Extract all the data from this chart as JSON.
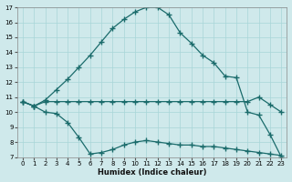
{
  "xlabel": "Humidex (Indice chaleur)",
  "bg_color": "#cfe9eb",
  "grid_color": "#a8d5d8",
  "line_color": "#1a6b6b",
  "xlim": [
    -0.5,
    23.5
  ],
  "ylim": [
    7,
    17
  ],
  "xticks": [
    0,
    1,
    2,
    3,
    4,
    5,
    6,
    7,
    8,
    9,
    10,
    11,
    12,
    13,
    14,
    15,
    16,
    17,
    18,
    19,
    20,
    21,
    22,
    23
  ],
  "yticks": [
    7,
    8,
    9,
    10,
    11,
    12,
    13,
    14,
    15,
    16,
    17
  ],
  "curve_x": [
    0,
    1,
    2,
    3,
    4,
    5,
    6,
    7,
    8,
    9,
    10,
    11,
    12,
    13,
    14,
    15,
    16,
    17,
    18,
    19,
    20,
    21,
    22,
    23
  ],
  "curve_y": [
    10.7,
    10.4,
    10.8,
    11.5,
    12.2,
    13.0,
    13.8,
    14.7,
    15.6,
    16.2,
    16.7,
    17.0,
    17.0,
    16.5,
    15.3,
    14.6,
    13.8,
    13.3,
    12.4,
    12.3,
    10.0,
    9.8,
    8.5,
    7.0
  ],
  "flat_x": [
    0,
    1,
    2,
    3,
    4,
    5,
    6,
    7,
    8,
    9,
    10,
    11,
    12,
    13,
    14,
    15,
    16,
    17,
    18,
    19,
    20,
    21,
    22,
    23
  ],
  "flat_y": [
    10.7,
    10.4,
    10.7,
    10.7,
    10.7,
    10.7,
    10.7,
    10.7,
    10.7,
    10.7,
    10.7,
    10.7,
    10.7,
    10.7,
    10.7,
    10.7,
    10.7,
    10.7,
    10.7,
    10.7,
    10.7,
    11.0,
    10.5,
    10.0
  ],
  "desc_x": [
    0,
    1,
    2,
    3,
    4,
    5,
    6,
    7,
    8,
    9,
    10,
    11,
    12,
    13,
    14,
    15,
    16,
    17,
    18,
    19,
    20,
    21,
    22,
    23
  ],
  "desc_y": [
    10.7,
    10.4,
    10.0,
    9.9,
    9.3,
    8.3,
    7.2,
    7.3,
    7.5,
    7.8,
    8.0,
    8.1,
    8.0,
    7.9,
    7.8,
    7.8,
    7.7,
    7.7,
    7.6,
    7.5,
    7.4,
    7.3,
    7.2,
    7.1
  ]
}
